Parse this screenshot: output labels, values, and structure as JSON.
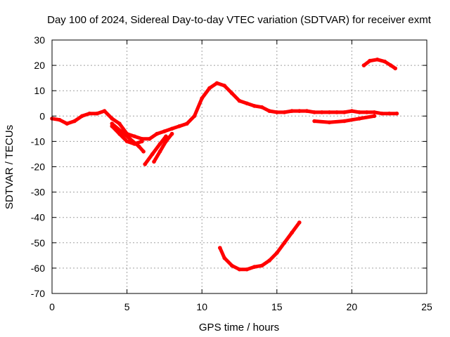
{
  "chart_data": {
    "type": "scatter",
    "title": "Day 100 of 2024, Sidereal Day-to-day VTEC variation (SDTVAR) for receiver exmt",
    "xlabel": "GPS time / hours",
    "ylabel": "SDTVAR / TECUs",
    "xlim": [
      0,
      25
    ],
    "ylim": [
      -70,
      30
    ],
    "xticks": [
      0,
      5,
      10,
      15,
      20,
      25
    ],
    "yticks": [
      -70,
      -60,
      -50,
      -40,
      -30,
      -20,
      -10,
      0,
      10,
      20,
      30
    ],
    "grid": true,
    "series_color": "#ff0000",
    "series": [
      {
        "name": "main-track",
        "x": [
          0.0,
          0.5,
          1.0,
          1.5,
          2.0,
          2.5,
          3.0,
          3.5,
          4.0,
          4.5,
          5.0,
          5.5,
          6.0,
          6.5,
          7.0,
          7.5,
          8.0,
          8.5,
          9.0,
          9.5,
          10.0,
          10.5,
          11.0,
          11.5,
          12.0,
          12.5,
          13.0,
          13.5,
          14.0,
          14.5,
          15.0,
          15.5,
          16.0,
          16.5,
          17.0,
          17.5,
          18.0,
          18.5,
          19.0,
          19.5,
          20.0,
          20.5,
          21.0,
          21.5,
          22.0,
          22.5,
          23.0
        ],
        "y": [
          -1,
          -1.5,
          -3,
          -2,
          0,
          1,
          1,
          2,
          -1,
          -3,
          -7,
          -8,
          -9,
          -9,
          -7,
          -6,
          -5,
          -4,
          -3,
          0,
          7,
          11,
          13,
          12,
          9,
          6,
          5,
          4,
          3.5,
          2,
          1.5,
          1.5,
          2,
          2,
          2,
          1.5,
          1.5,
          1.5,
          1.5,
          1.5,
          2,
          1.5,
          1.5,
          1.5,
          1,
          1,
          1
        ]
      },
      {
        "name": "lower-band",
        "x": [
          4.0,
          4.5,
          5.0,
          5.5,
          6.0
        ],
        "y": [
          -4,
          -7,
          -10,
          -11,
          -10
        ]
      },
      {
        "name": "spur-a",
        "x": [
          4.0,
          4.6,
          5.2,
          5.8,
          6.1
        ],
        "y": [
          -3,
          -6,
          -9,
          -12,
          -14
        ]
      },
      {
        "name": "spur-b",
        "x": [
          6.2,
          6.7,
          7.2,
          7.6
        ],
        "y": [
          -19,
          -15,
          -11,
          -8
        ]
      },
      {
        "name": "spur-c",
        "x": [
          6.8,
          7.2,
          7.6,
          8.0
        ],
        "y": [
          -18,
          -14,
          -10,
          -7
        ]
      },
      {
        "name": "offset-band",
        "x": [
          17.5,
          18.5,
          19.5,
          20.5,
          21.5
        ],
        "y": [
          -2,
          -2.5,
          -2,
          -1,
          0
        ]
      },
      {
        "name": "low-arc",
        "x": [
          11.2,
          11.5,
          12.0,
          12.5,
          13.0,
          13.5,
          14.0,
          14.5,
          15.0,
          15.5,
          16.0,
          16.5
        ],
        "y": [
          -52,
          -56,
          -59,
          -60.5,
          -60.5,
          -59.5,
          -59,
          -57,
          -54,
          -50,
          -46,
          -42
        ]
      },
      {
        "name": "high-arc",
        "x": [
          20.8,
          21.2,
          21.7,
          22.2,
          22.6,
          22.9
        ],
        "y": [
          20,
          21.8,
          22.3,
          21.5,
          20,
          18.8
        ]
      }
    ]
  }
}
